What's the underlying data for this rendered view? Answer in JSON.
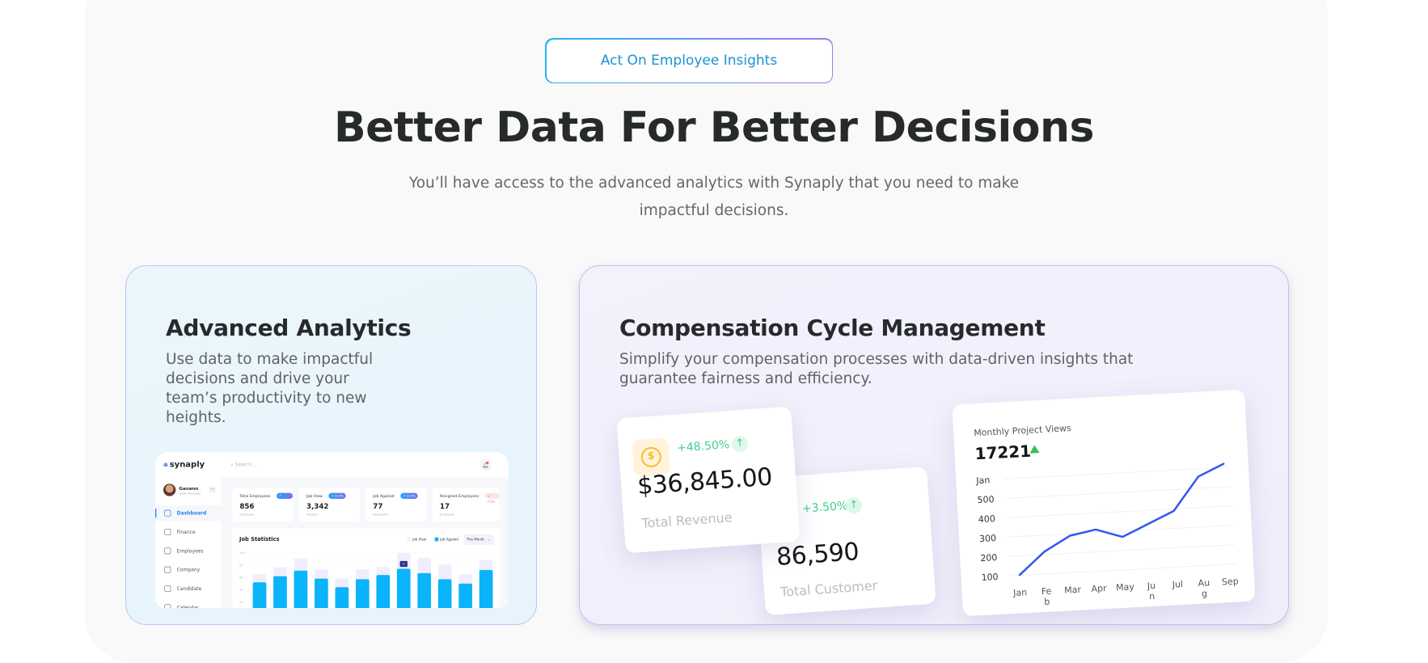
{
  "header": {
    "badge": "Act On Employee Insights",
    "title": "Better Data For Better Decisions",
    "subtitle": "You’ll have access to the advanced analytics with Synaply that you need to make impactful decisions."
  },
  "colors": {
    "accent": "#1a93d1",
    "bar_applied": "#0ab4fb",
    "bar_view": "#f0eefc",
    "line": "#3157f0",
    "positive": "#3fcf8e"
  },
  "analytics_card": {
    "title": "Advanced Analytics",
    "description": "Use data to make impactful decisions and drive your team’s productivity to new heights.",
    "dashboard": {
      "logo": "synaply",
      "search_placeholder": "Search...",
      "user_name": "Gavano",
      "user_role": "Sales Manager",
      "nav": [
        {
          "label": "Dashboard",
          "icon": "grid-icon",
          "active": true
        },
        {
          "label": "Finance",
          "icon": "finance-icon"
        },
        {
          "label": "Employees",
          "icon": "users-icon"
        },
        {
          "label": "Company",
          "icon": "briefcase-icon"
        },
        {
          "label": "Candidate",
          "icon": "user-icon"
        },
        {
          "label": "Calendar",
          "icon": "calendar-icon"
        }
      ],
      "stats": [
        {
          "title": "Total Employees",
          "badge": "↗ 10.0%",
          "value": "856",
          "sub": "Employee"
        },
        {
          "title": "Job View",
          "badge": "↗ 22.0%",
          "value": "3,342",
          "sub": "Viewers"
        },
        {
          "title": "Job Applied",
          "badge": "↗ 12.0%",
          "value": "77",
          "sub": "Applicants"
        },
        {
          "title": "Resigned Employees",
          "badge": "↘ 7.0%",
          "value": "17",
          "sub": "Employee",
          "negative": true
        }
      ],
      "job_statistics": {
        "title": "Job Statistics",
        "legend_view": "Job View",
        "legend_applied": "Job Applied",
        "period": "This Month",
        "tooltip": "77"
      }
    }
  },
  "compensation_card": {
    "title": "Compensation Cycle Management",
    "description": "Simplify your compensation processes with data-driven insights that guarantee fairness and efficiency.",
    "revenue": {
      "change": "+48.50%",
      "value": "$36,845.00",
      "label": "Total Revenue"
    },
    "customer": {
      "change": "+3.50%",
      "value": "86,590",
      "label": "Total Customer"
    },
    "views": {
      "title": "Monthly Project Views",
      "value": "17221"
    }
  },
  "chart_data": [
    {
      "type": "bar",
      "title": "Job Statistics",
      "yticks": [
        "100",
        "80",
        "60",
        "40",
        "20"
      ],
      "ylim": [
        0,
        100
      ],
      "grid": true,
      "legend": "top-right",
      "series": [
        {
          "name": "Job View",
          "values": [
            65,
            77,
            91,
            73,
            58,
            73,
            77,
            100,
            92,
            81,
            65,
            88
          ]
        },
        {
          "name": "Job Applied",
          "values": [
            52,
            62,
            71,
            58,
            44,
            57,
            64,
            74,
            67,
            57,
            50,
            72
          ]
        }
      ]
    },
    {
      "type": "line",
      "title": "Monthly Project Views",
      "categories": [
        "Jan",
        "Feb",
        "Mar",
        "Apr",
        "May",
        "Jun",
        "Jul",
        "Aug",
        "Sep"
      ],
      "category_labels": [
        "Jan",
        "Fe\nb",
        "Mar",
        "Apr",
        "May",
        "Ju\nn",
        "Jul",
        "Au\ng",
        "Sep"
      ],
      "yticks": [
        "Jan",
        "500",
        "400",
        "300",
        "200",
        "100"
      ],
      "ylim": [
        100,
        600
      ],
      "grid": true,
      "values": [
        100,
        215,
        290,
        315,
        270,
        330,
        390,
        560,
        620
      ]
    }
  ]
}
